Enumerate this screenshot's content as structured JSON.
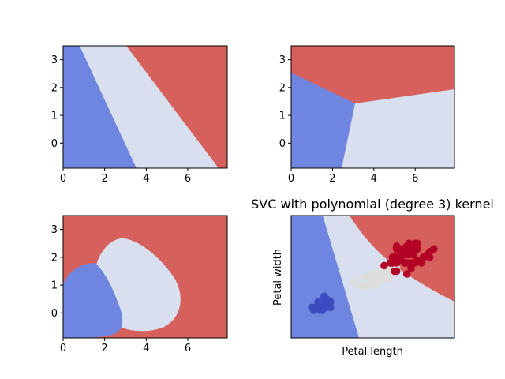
{
  "colors": {
    "class0": "#6f86e0",
    "class1": "#d8dfef",
    "class2": "#d6605c",
    "point0": "#3b4cc0",
    "point1": "#dddddd",
    "point2": "#b40426"
  },
  "chart_data": [
    {
      "type": "heatmap",
      "title": "",
      "xlabel": "",
      "ylabel": "",
      "xlim": [
        0,
        7.9
      ],
      "ylim": [
        -0.9,
        3.5
      ],
      "xticks": [
        "0",
        "2",
        "4",
        "6"
      ],
      "yticks": [
        "0",
        "1",
        "2",
        "3"
      ],
      "decision_regions": [
        "class0",
        "class1",
        "class2"
      ]
    },
    {
      "type": "heatmap",
      "title": "",
      "xlabel": "",
      "ylabel": "",
      "xlim": [
        0,
        7.9
      ],
      "ylim": [
        -0.9,
        3.5
      ],
      "xticks": [
        "0",
        "2",
        "4",
        "6"
      ],
      "yticks": [
        "0",
        "1",
        "2",
        "3"
      ],
      "decision_regions": [
        "class0",
        "class1",
        "class2"
      ]
    },
    {
      "type": "heatmap",
      "title": "",
      "xlabel": "",
      "ylabel": "",
      "xlim": [
        0,
        7.9
      ],
      "ylim": [
        -0.9,
        3.5
      ],
      "xticks": [
        "0",
        "2",
        "4",
        "6"
      ],
      "yticks": [
        "0",
        "1",
        "2",
        "3"
      ],
      "decision_regions": [
        "class0",
        "class1",
        "class2"
      ]
    },
    {
      "type": "scatter",
      "title": "SVC with polynomial (degree 3) kernel",
      "xlabel": "Petal length",
      "ylabel": "Petal width",
      "xlim": [
        0,
        7.9
      ],
      "ylim": [
        -0.9,
        3.5
      ],
      "xticks": [],
      "yticks": [],
      "series": [
        {
          "class": 0,
          "points": [
            [
              1.4,
              0.2
            ],
            [
              1.4,
              0.2
            ],
            [
              1.3,
              0.2
            ],
            [
              1.5,
              0.2
            ],
            [
              1.4,
              0.2
            ],
            [
              1.7,
              0.4
            ],
            [
              1.4,
              0.3
            ],
            [
              1.5,
              0.2
            ],
            [
              1.4,
              0.2
            ],
            [
              1.5,
              0.1
            ],
            [
              1.5,
              0.2
            ],
            [
              1.6,
              0.2
            ],
            [
              1.4,
              0.1
            ],
            [
              1.1,
              0.1
            ],
            [
              1.2,
              0.2
            ],
            [
              1.5,
              0.4
            ],
            [
              1.3,
              0.4
            ],
            [
              1.4,
              0.3
            ],
            [
              1.7,
              0.3
            ],
            [
              1.5,
              0.3
            ],
            [
              1.7,
              0.2
            ],
            [
              1.5,
              0.4
            ],
            [
              1.0,
              0.2
            ],
            [
              1.7,
              0.5
            ],
            [
              1.9,
              0.2
            ],
            [
              1.6,
              0.2
            ],
            [
              1.6,
              0.4
            ],
            [
              1.5,
              0.2
            ],
            [
              1.4,
              0.2
            ],
            [
              1.6,
              0.2
            ],
            [
              1.6,
              0.2
            ],
            [
              1.5,
              0.4
            ],
            [
              1.5,
              0.1
            ],
            [
              1.4,
              0.2
            ],
            [
              1.5,
              0.2
            ],
            [
              1.2,
              0.2
            ],
            [
              1.3,
              0.2
            ],
            [
              1.4,
              0.1
            ],
            [
              1.3,
              0.2
            ],
            [
              1.5,
              0.2
            ],
            [
              1.3,
              0.3
            ],
            [
              1.3,
              0.3
            ],
            [
              1.3,
              0.2
            ],
            [
              1.6,
              0.6
            ],
            [
              1.9,
              0.4
            ],
            [
              1.4,
              0.3
            ],
            [
              1.6,
              0.2
            ],
            [
              1.4,
              0.2
            ],
            [
              1.5,
              0.2
            ],
            [
              1.4,
              0.2
            ]
          ]
        },
        {
          "class": 1,
          "points": [
            [
              4.7,
              1.4
            ],
            [
              4.5,
              1.5
            ],
            [
              4.9,
              1.5
            ],
            [
              4.0,
              1.3
            ],
            [
              4.6,
              1.5
            ],
            [
              4.5,
              1.3
            ],
            [
              4.7,
              1.6
            ],
            [
              3.3,
              1.0
            ],
            [
              4.6,
              1.3
            ],
            [
              3.9,
              1.4
            ],
            [
              3.5,
              1.0
            ],
            [
              4.2,
              1.5
            ],
            [
              4.0,
              1.0
            ],
            [
              4.7,
              1.4
            ],
            [
              3.6,
              1.3
            ],
            [
              4.4,
              1.4
            ],
            [
              4.5,
              1.5
            ],
            [
              4.1,
              1.0
            ],
            [
              4.5,
              1.5
            ],
            [
              3.9,
              1.1
            ],
            [
              4.8,
              1.8
            ],
            [
              4.0,
              1.3
            ],
            [
              4.9,
              1.5
            ],
            [
              4.7,
              1.2
            ],
            [
              4.3,
              1.3
            ],
            [
              4.4,
              1.4
            ],
            [
              4.8,
              1.4
            ],
            [
              5.0,
              1.7
            ],
            [
              4.5,
              1.5
            ],
            [
              3.5,
              1.0
            ],
            [
              3.8,
              1.1
            ],
            [
              3.7,
              1.0
            ],
            [
              3.9,
              1.2
            ],
            [
              5.1,
              1.6
            ],
            [
              4.5,
              1.5
            ],
            [
              4.5,
              1.6
            ],
            [
              4.7,
              1.5
            ],
            [
              4.4,
              1.3
            ],
            [
              4.1,
              1.3
            ],
            [
              4.0,
              1.3
            ],
            [
              4.4,
              1.2
            ],
            [
              4.6,
              1.4
            ],
            [
              4.0,
              1.2
            ],
            [
              3.3,
              1.0
            ],
            [
              4.2,
              1.3
            ],
            [
              4.2,
              1.2
            ],
            [
              4.2,
              1.3
            ],
            [
              4.3,
              1.3
            ],
            [
              3.0,
              1.1
            ],
            [
              4.1,
              1.3
            ]
          ]
        },
        {
          "class": 2,
          "points": [
            [
              6.0,
              2.5
            ],
            [
              5.1,
              1.9
            ],
            [
              5.9,
              2.1
            ],
            [
              5.6,
              1.8
            ],
            [
              5.8,
              2.2
            ],
            [
              6.6,
              2.1
            ],
            [
              4.5,
              1.7
            ],
            [
              6.3,
              1.8
            ],
            [
              5.8,
              1.8
            ],
            [
              6.1,
              2.5
            ],
            [
              5.1,
              2.0
            ],
            [
              5.3,
              1.9
            ],
            [
              5.5,
              2.1
            ],
            [
              5.0,
              2.0
            ],
            [
              5.1,
              2.4
            ],
            [
              5.3,
              2.3
            ],
            [
              5.5,
              1.8
            ],
            [
              6.7,
              2.2
            ],
            [
              6.9,
              2.3
            ],
            [
              5.0,
              1.5
            ],
            [
              5.7,
              2.3
            ],
            [
              4.9,
              2.0
            ],
            [
              6.7,
              2.0
            ],
            [
              4.9,
              1.8
            ],
            [
              5.7,
              2.1
            ],
            [
              6.0,
              1.8
            ],
            [
              4.8,
              1.8
            ],
            [
              4.9,
              1.8
            ],
            [
              5.6,
              2.1
            ],
            [
              5.8,
              1.6
            ],
            [
              6.1,
              1.9
            ],
            [
              6.4,
              2.0
            ],
            [
              5.6,
              2.2
            ],
            [
              5.1,
              1.5
            ],
            [
              5.6,
              1.4
            ],
            [
              6.1,
              2.3
            ],
            [
              5.6,
              2.4
            ],
            [
              5.5,
              1.8
            ],
            [
              4.8,
              1.8
            ],
            [
              5.4,
              2.1
            ],
            [
              5.6,
              2.4
            ],
            [
              5.1,
              2.3
            ],
            [
              5.1,
              1.9
            ],
            [
              5.9,
              2.3
            ],
            [
              5.7,
              2.5
            ],
            [
              5.2,
              2.3
            ],
            [
              5.0,
              1.9
            ],
            [
              5.2,
              2.0
            ],
            [
              5.4,
              2.3
            ],
            [
              5.1,
              1.8
            ]
          ]
        }
      ]
    }
  ]
}
